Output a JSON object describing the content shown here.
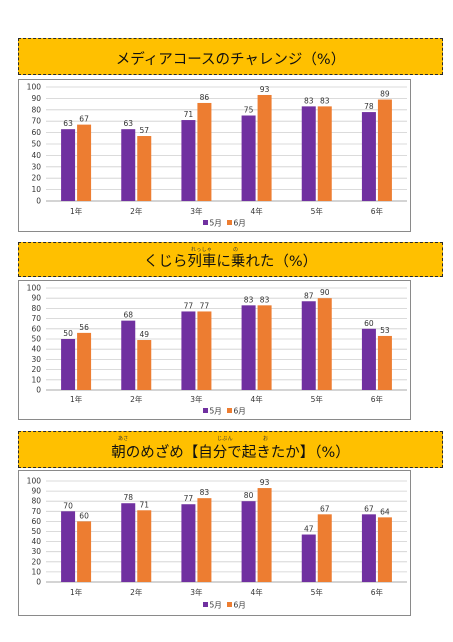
{
  "colors": {
    "may": "#7030a0",
    "june": "#ed7d31",
    "banner": "#ffc000"
  },
  "legend": {
    "may": "5月",
    "june": "6月"
  },
  "sections": [
    {
      "title": "メディアコースのチャレンジ（%）",
      "ruby": []
    },
    {
      "title": "くじら列車に乗れた（%）",
      "ruby": [
        "れっしゃ",
        "の"
      ]
    },
    {
      "title": "朝のめざめ【自分で起きたか】（%）",
      "ruby": [
        "あさ",
        "じぶん",
        "お"
      ]
    }
  ],
  "chart_data": [
    {
      "type": "bar",
      "categories": [
        "1年",
        "2年",
        "3年",
        "4年",
        "5年",
        "6年"
      ],
      "series": [
        {
          "name": "5月",
          "values": [
            63,
            63,
            71,
            75,
            83,
            78
          ]
        },
        {
          "name": "6月",
          "values": [
            67,
            57,
            86,
            93,
            83,
            89
          ]
        }
      ],
      "ylim": [
        0,
        100
      ],
      "yticks": [
        0,
        10,
        20,
        30,
        40,
        50,
        60,
        70,
        80,
        90,
        100
      ],
      "grid": true,
      "legend_position": "bottom"
    },
    {
      "type": "bar",
      "categories": [
        "1年",
        "2年",
        "3年",
        "4年",
        "5年",
        "6年"
      ],
      "series": [
        {
          "name": "5月",
          "values": [
            50,
            68,
            77,
            83,
            87,
            60
          ]
        },
        {
          "name": "6月",
          "values": [
            56,
            49,
            77,
            83,
            90,
            53
          ]
        }
      ],
      "ylim": [
        0,
        100
      ],
      "yticks": [
        0,
        10,
        20,
        30,
        40,
        50,
        60,
        70,
        80,
        90,
        100
      ],
      "grid": true,
      "legend_position": "bottom"
    },
    {
      "type": "bar",
      "categories": [
        "1年",
        "2年",
        "3年",
        "4年",
        "5年",
        "6年"
      ],
      "series": [
        {
          "name": "5月",
          "values": [
            70,
            78,
            77,
            80,
            47,
            67
          ]
        },
        {
          "name": "6月",
          "values": [
            60,
            71,
            83,
            93,
            67,
            64
          ]
        }
      ],
      "ylim": [
        0,
        100
      ],
      "yticks": [
        0,
        10,
        20,
        30,
        40,
        50,
        60,
        70,
        80,
        90,
        100
      ],
      "grid": true,
      "legend_position": "bottom"
    }
  ]
}
